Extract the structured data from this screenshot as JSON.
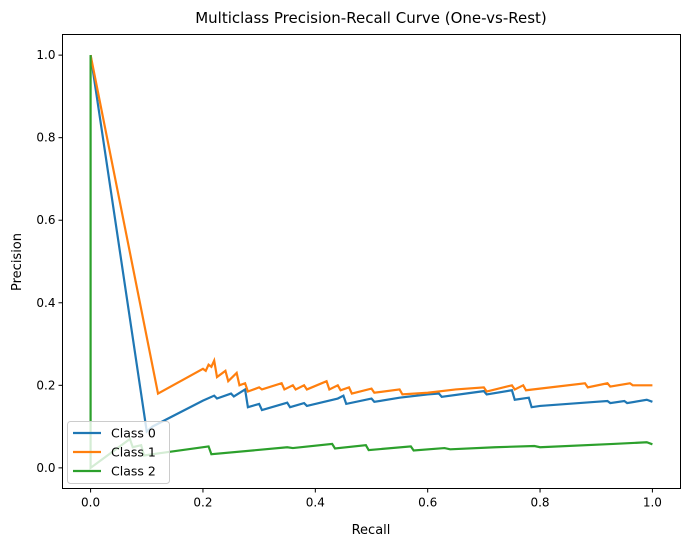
{
  "chart_data": {
    "type": "line",
    "title": "Multiclass Precision-Recall Curve (One-vs-Rest)",
    "xlabel": "Recall",
    "ylabel": "Precision",
    "xlim": [
      -0.05,
      1.05
    ],
    "ylim": [
      -0.05,
      1.05
    ],
    "xticks": [
      "0.0",
      "0.2",
      "0.4",
      "0.6",
      "0.8",
      "1.0"
    ],
    "yticks": [
      "0.0",
      "0.2",
      "0.4",
      "0.6",
      "0.8",
      "1.0"
    ],
    "grid": false,
    "legend_position": "lower-left",
    "series": [
      {
        "name": "Class 0",
        "color": "#1f77b4",
        "points": [
          [
            0,
            1.0
          ],
          [
            0.1,
            0.088
          ],
          [
            0.11,
            0.1
          ],
          [
            0.2,
            0.163
          ],
          [
            0.22,
            0.175
          ],
          [
            0.225,
            0.168
          ],
          [
            0.25,
            0.18
          ],
          [
            0.255,
            0.173
          ],
          [
            0.275,
            0.19
          ],
          [
            0.28,
            0.147
          ],
          [
            0.3,
            0.155
          ],
          [
            0.305,
            0.14
          ],
          [
            0.35,
            0.158
          ],
          [
            0.355,
            0.147
          ],
          [
            0.38,
            0.157
          ],
          [
            0.385,
            0.15
          ],
          [
            0.44,
            0.168
          ],
          [
            0.45,
            0.175
          ],
          [
            0.455,
            0.155
          ],
          [
            0.5,
            0.168
          ],
          [
            0.505,
            0.16
          ],
          [
            0.55,
            0.17
          ],
          [
            0.6,
            0.178
          ],
          [
            0.62,
            0.18
          ],
          [
            0.625,
            0.172
          ],
          [
            0.7,
            0.186
          ],
          [
            0.705,
            0.178
          ],
          [
            0.75,
            0.188
          ],
          [
            0.755,
            0.165
          ],
          [
            0.78,
            0.17
          ],
          [
            0.785,
            0.147
          ],
          [
            0.8,
            0.15
          ],
          [
            0.9,
            0.16
          ],
          [
            0.92,
            0.162
          ],
          [
            0.925,
            0.157
          ],
          [
            0.95,
            0.162
          ],
          [
            0.955,
            0.157
          ],
          [
            0.99,
            0.165
          ],
          [
            1.0,
            0.16
          ]
        ]
      },
      {
        "name": "Class 1",
        "color": "#ff7f0e",
        "points": [
          [
            0,
            1.0
          ],
          [
            0.12,
            0.18
          ],
          [
            0.16,
            0.21
          ],
          [
            0.2,
            0.24
          ],
          [
            0.205,
            0.235
          ],
          [
            0.21,
            0.25
          ],
          [
            0.215,
            0.245
          ],
          [
            0.22,
            0.26
          ],
          [
            0.225,
            0.22
          ],
          [
            0.24,
            0.235
          ],
          [
            0.245,
            0.21
          ],
          [
            0.26,
            0.23
          ],
          [
            0.265,
            0.2
          ],
          [
            0.275,
            0.205
          ],
          [
            0.28,
            0.185
          ],
          [
            0.3,
            0.195
          ],
          [
            0.305,
            0.19
          ],
          [
            0.34,
            0.205
          ],
          [
            0.345,
            0.19
          ],
          [
            0.36,
            0.2
          ],
          [
            0.365,
            0.19
          ],
          [
            0.38,
            0.2
          ],
          [
            0.385,
            0.19
          ],
          [
            0.42,
            0.21
          ],
          [
            0.425,
            0.19
          ],
          [
            0.44,
            0.2
          ],
          [
            0.445,
            0.188
          ],
          [
            0.46,
            0.195
          ],
          [
            0.465,
            0.18
          ],
          [
            0.5,
            0.192
          ],
          [
            0.505,
            0.182
          ],
          [
            0.55,
            0.19
          ],
          [
            0.555,
            0.178
          ],
          [
            0.6,
            0.182
          ],
          [
            0.65,
            0.19
          ],
          [
            0.7,
            0.195
          ],
          [
            0.705,
            0.185
          ],
          [
            0.75,
            0.2
          ],
          [
            0.755,
            0.19
          ],
          [
            0.77,
            0.2
          ],
          [
            0.775,
            0.188
          ],
          [
            0.88,
            0.205
          ],
          [
            0.885,
            0.195
          ],
          [
            0.92,
            0.205
          ],
          [
            0.925,
            0.197
          ],
          [
            0.96,
            0.205
          ],
          [
            0.965,
            0.2
          ],
          [
            1.0,
            0.2
          ]
        ]
      },
      {
        "name": "Class 2",
        "color": "#2ca02c",
        "points": [
          [
            0,
            1.0
          ],
          [
            0,
            0.0
          ],
          [
            0.07,
            0.07
          ],
          [
            0.075,
            0.05
          ],
          [
            0.09,
            0.055
          ],
          [
            0.095,
            0.03
          ],
          [
            0.12,
            0.035
          ],
          [
            0.21,
            0.052
          ],
          [
            0.215,
            0.033
          ],
          [
            0.35,
            0.05
          ],
          [
            0.36,
            0.048
          ],
          [
            0.43,
            0.058
          ],
          [
            0.435,
            0.047
          ],
          [
            0.49,
            0.055
          ],
          [
            0.495,
            0.043
          ],
          [
            0.57,
            0.052
          ],
          [
            0.575,
            0.042
          ],
          [
            0.63,
            0.048
          ],
          [
            0.64,
            0.045
          ],
          [
            0.72,
            0.05
          ],
          [
            0.79,
            0.053
          ],
          [
            0.8,
            0.05
          ],
          [
            0.93,
            0.058
          ],
          [
            0.99,
            0.062
          ],
          [
            1.0,
            0.057
          ]
        ]
      }
    ]
  }
}
